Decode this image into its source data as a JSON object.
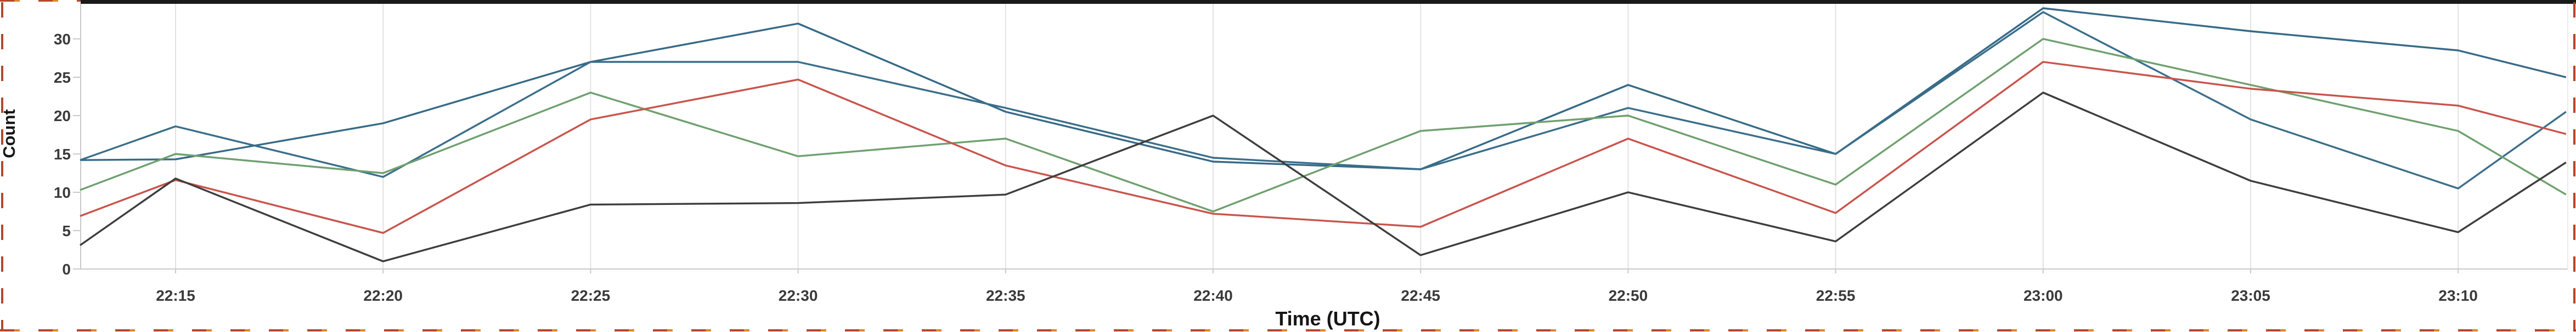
{
  "panel": {
    "description": "line chart panel",
    "border_dash_red": "#b2482a",
    "border_dash_orange": "#e0862a",
    "top_band_color": "#1a1a1a",
    "background": "#ffffff"
  },
  "chart_data": {
    "type": "line",
    "title": "",
    "xlabel": "Time (UTC)",
    "ylabel": "Count",
    "x_tick_labels": [
      "22:15",
      "22:20",
      "22:25",
      "22:30",
      "22:35",
      "22:40",
      "22:45",
      "22:50",
      "22:55",
      "23:00",
      "23:05",
      "23:10"
    ],
    "x_tick_interval_minutes": 5,
    "y_ticks": [
      0,
      5,
      10,
      15,
      20,
      25,
      30
    ],
    "ylim": [
      0,
      34.5
    ],
    "grid": "vertical-only",
    "legend": "none",
    "axis_color": "#c9c9c9",
    "gridline_color": "#e2e2e2",
    "tick_label_color": "#3a3a3a",
    "series": [
      {
        "name": "series-blue-a",
        "color": "#366a87",
        "values": [
          14.3,
          19,
          27,
          32,
          20.5,
          14,
          13,
          24,
          15,
          34,
          31,
          28.5
        ],
        "edge_left": 14.2,
        "edge_right": 25
      },
      {
        "name": "series-blue-b",
        "color": "#3a6e8a",
        "values": [
          18.6,
          12,
          27,
          27,
          21,
          14.5,
          13,
          21,
          15,
          33.5,
          19.5,
          10.5
        ],
        "edge_left": 14.2,
        "edge_right": 20.5
      },
      {
        "name": "series-green",
        "color": "#6fa06f",
        "values": [
          15,
          12.5,
          23,
          14.7,
          17,
          7.5,
          18,
          20,
          11,
          30,
          24,
          18
        ],
        "edge_left": 10.3,
        "edge_right": 9.7
      },
      {
        "name": "series-red",
        "color": "#c9544c",
        "values": [
          11.6,
          4.7,
          19.5,
          24.7,
          13.5,
          7.2,
          5.5,
          17,
          7.3,
          27,
          23.5,
          21.3
        ],
        "edge_left": 6.9,
        "edge_right": 17.6
      },
      {
        "name": "series-black",
        "color": "#3d3d3d",
        "values": [
          11.8,
          1,
          8.4,
          8.6,
          9.7,
          20,
          1.8,
          10,
          3.6,
          23,
          11.5,
          4.8
        ],
        "edge_left": 3.1,
        "edge_right": 13.9
      }
    ]
  }
}
